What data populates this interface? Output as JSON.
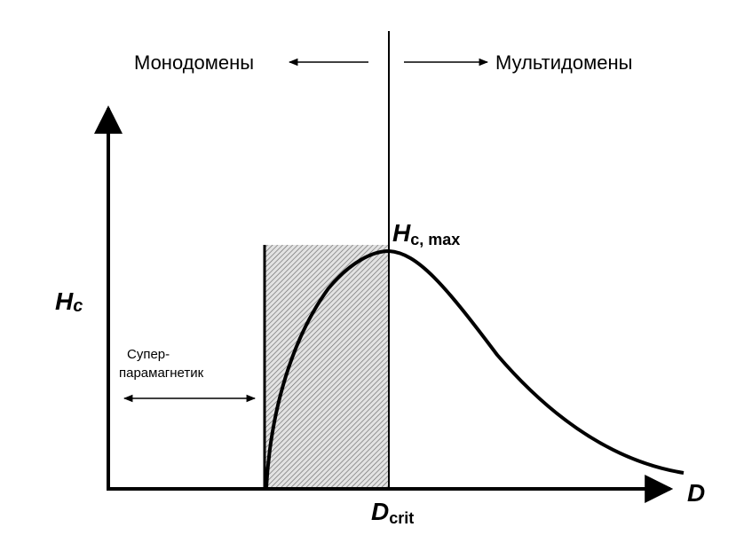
{
  "labels": {
    "monodomain": "Монодомены",
    "multidomain": "Мультидомены",
    "superparamagnetic_line1": "Супер-",
    "superparamagnetic_line2": "парамагнетик",
    "y_axis_main": "H",
    "y_axis_sub": "c",
    "x_axis": "D",
    "peak_main": "H",
    "peak_sub": "c, max",
    "critical_main": "D",
    "critical_sub": "crit"
  },
  "colors": {
    "ink": "#000000",
    "hatch_bg": "#e6e6e6"
  }
}
